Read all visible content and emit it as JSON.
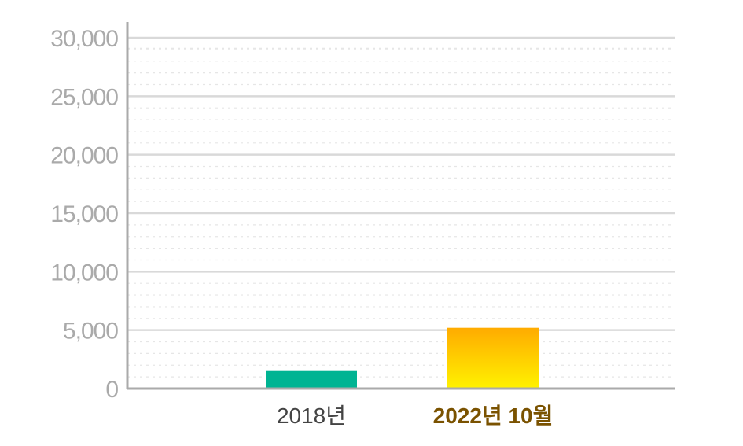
{
  "chart_data": {
    "type": "bar",
    "categories": [
      "2018년",
      "2022년 10월"
    ],
    "values": [
      1500,
      5200
    ],
    "ylim": [
      0,
      30000
    ],
    "yticks": [
      "0",
      "5,000",
      "10,000",
      "15,000",
      "20,000",
      "25,000",
      "30,000"
    ],
    "ytick_values": [
      0,
      5000,
      10000,
      15000,
      20000,
      25000,
      30000
    ],
    "grid": true,
    "legend": "none",
    "colors": {
      "bar_2018": "#00b493",
      "bar_2022_top": "#ffab00",
      "bar_2022_bottom": "#fff200",
      "grid_major": "#d9d9d9",
      "grid_minor": "#e6e6e6",
      "axis": "#aaaaaa",
      "tick_text": "#aaaaaa",
      "category_text": "#444444",
      "category_highlight_text": "#7a5200"
    }
  }
}
